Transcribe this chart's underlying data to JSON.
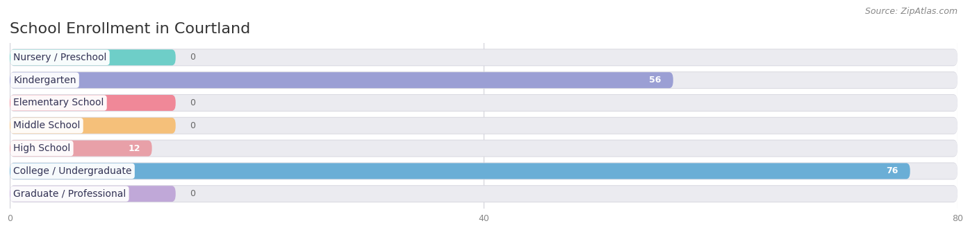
{
  "title": "School Enrollment in Courtland",
  "source": "Source: ZipAtlas.com",
  "categories": [
    "Nursery / Preschool",
    "Kindergarten",
    "Elementary School",
    "Middle School",
    "High School",
    "College / Undergraduate",
    "Graduate / Professional"
  ],
  "values": [
    0,
    56,
    0,
    0,
    12,
    76,
    0
  ],
  "bar_colors": [
    "#6ecec8",
    "#9b9fd4",
    "#f08898",
    "#f5c07a",
    "#e8a0a8",
    "#6aaed6",
    "#c0a8d8"
  ],
  "bg_color": "#ffffff",
  "bar_bg_color": "#ebebf0",
  "bar_bg_border": "#d8d8e0",
  "xlim": [
    0,
    80
  ],
  "xmax": 80,
  "xticks": [
    0,
    40,
    80
  ],
  "label_value_color_inside": "#ffffff",
  "label_value_color_outside": "#666666",
  "title_fontsize": 16,
  "source_fontsize": 9,
  "label_fontsize": 10,
  "value_fontsize": 9,
  "bar_height": 0.7,
  "zero_stub_value": 14
}
